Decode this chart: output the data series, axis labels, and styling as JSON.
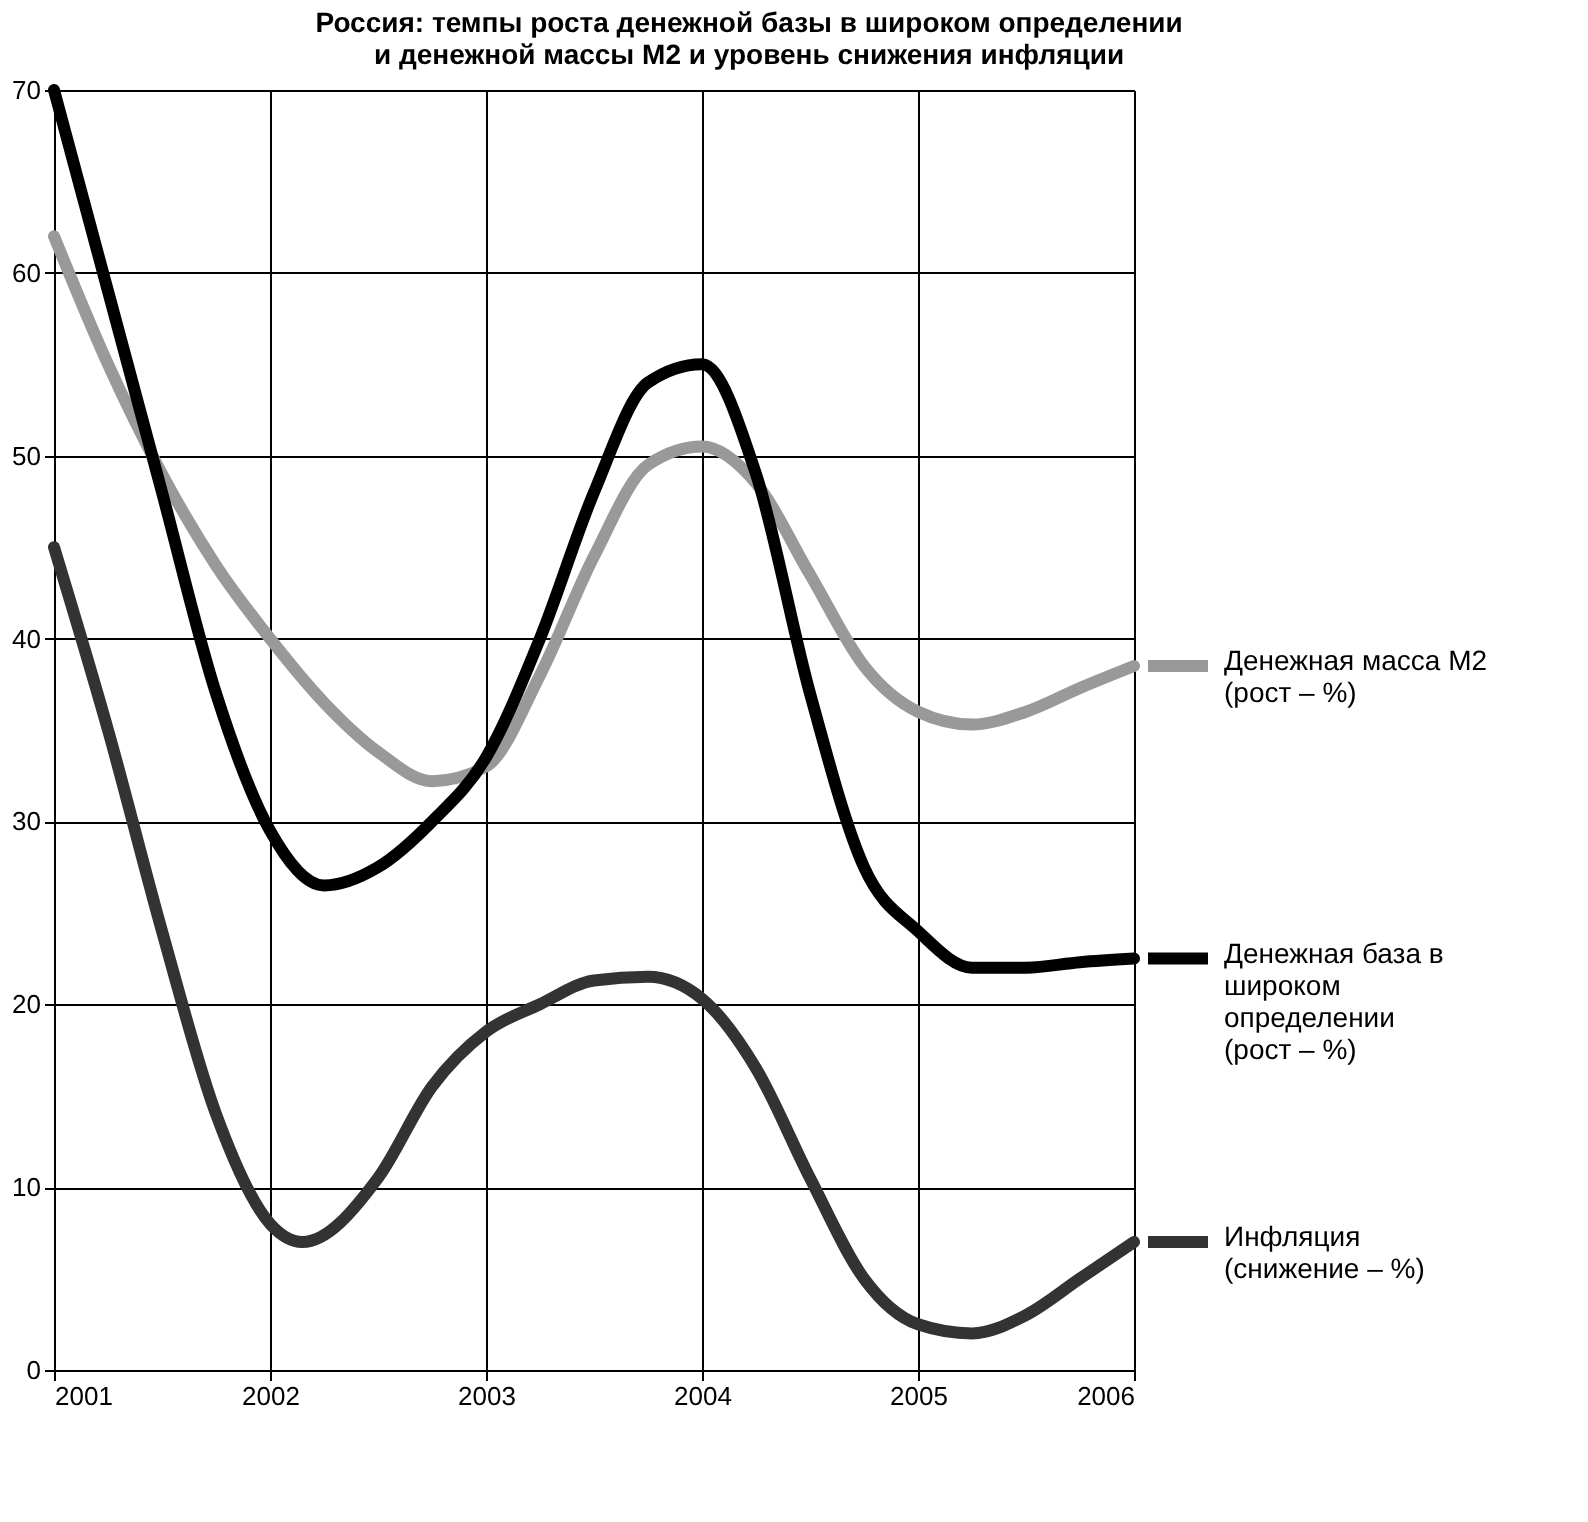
{
  "chart_data": {
    "type": "line",
    "title": "Россия: темпы роста денежной базы в широком определении\nи денежной массы М2 и уровень снижения инфляции",
    "xlim": [
      2001,
      2006
    ],
    "xticks": [
      2001,
      2002,
      2003,
      2004,
      2005,
      2006
    ],
    "ylim": [
      0,
      70
    ],
    "yticks": [
      0,
      10,
      20,
      30,
      40,
      50,
      60,
      70
    ],
    "grid": true,
    "legend": "right",
    "marker": "none",
    "line_style": "solid",
    "series": [
      {
        "name": "Денежная масса М2\n(рост – %)",
        "color": "#999999",
        "x": [
          2001,
          2001.25,
          2001.5,
          2001.75,
          2002,
          2002.25,
          2002.5,
          2002.75,
          2003,
          2003.25,
          2003.5,
          2003.75,
          2004,
          2004.25,
          2004.5,
          2004.75,
          2005,
          2005.25,
          2005.5,
          2005.75,
          2006
        ],
        "values": [
          62,
          55,
          49,
          44,
          40,
          36.5,
          33.8,
          32.2,
          33,
          38,
          44.5,
          49.5,
          50.5,
          48.5,
          43.5,
          38.5,
          36,
          35.3,
          36,
          37.3,
          38.5
        ]
      },
      {
        "name": "Денежная база в\nшироком\nопределении\n(рост – %)",
        "color": "#000000",
        "x": [
          2001,
          2001.25,
          2001.5,
          2001.75,
          2002,
          2002.25,
          2002.5,
          2002.75,
          2003,
          2003.25,
          2003.5,
          2003.75,
          2004,
          2004.25,
          2004.5,
          2004.75,
          2005,
          2005.25,
          2005.5,
          2005.75,
          2006
        ],
        "values": [
          70,
          59,
          48,
          37,
          29.5,
          26.5,
          27.5,
          30,
          33.5,
          40,
          48,
          54,
          55,
          49,
          37,
          27.5,
          24,
          22,
          22,
          22.3,
          22.5
        ]
      },
      {
        "name": "Инфляция\n(снижение – %)",
        "color": "#333333",
        "x": [
          2001,
          2001.25,
          2001.5,
          2001.75,
          2002,
          2002.15,
          2002.5,
          2002.75,
          2003,
          2003.25,
          2003.5,
          2003.75,
          2004,
          2004.25,
          2004.5,
          2004.75,
          2005,
          2005.25,
          2005.5,
          2005.75,
          2006
        ],
        "values": [
          45,
          35,
          24,
          14,
          8,
          7,
          10.5,
          15.5,
          18.5,
          20,
          21.3,
          21.5,
          20.3,
          16.5,
          10.5,
          5,
          2.5,
          2,
          3,
          5,
          7
        ]
      }
    ]
  }
}
